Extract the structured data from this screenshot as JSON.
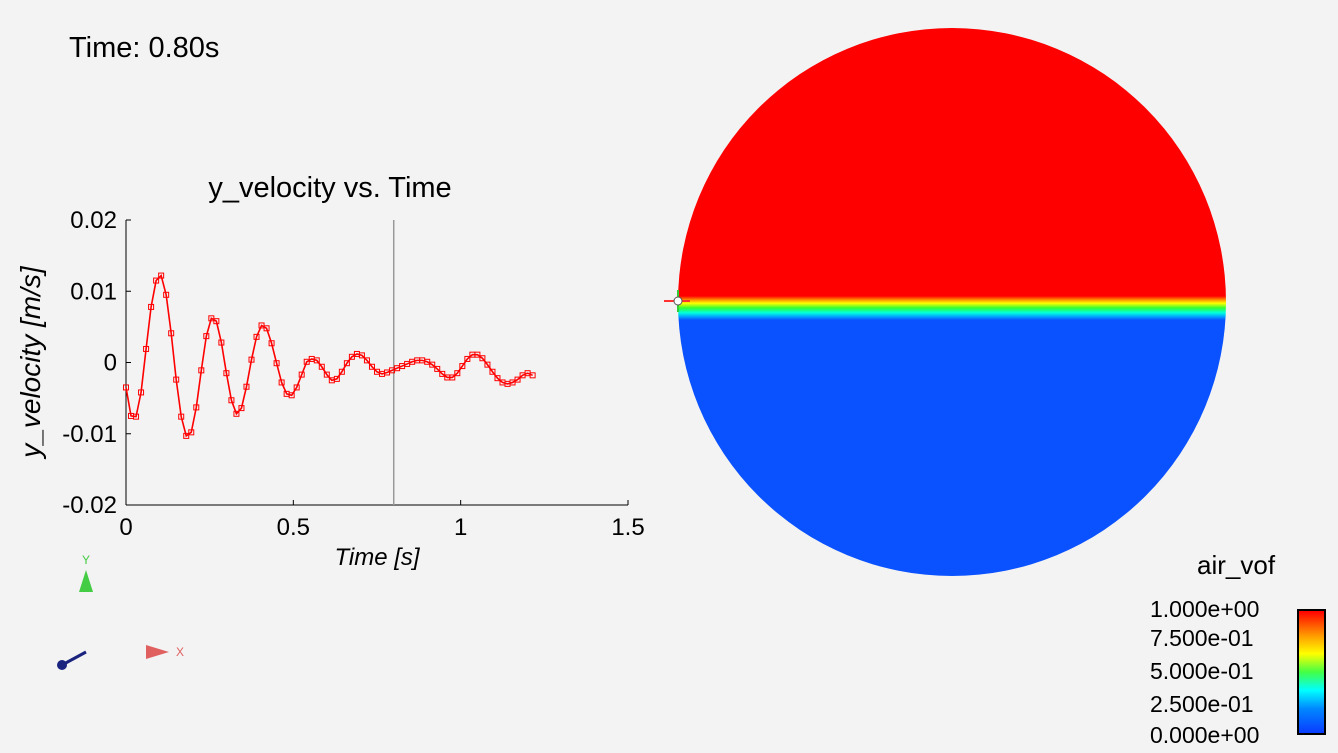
{
  "time_label": "Time: 0.80s",
  "chart_data": {
    "type": "line",
    "title": "y_velocity vs. Time",
    "xlabel": "Time [s]",
    "ylabel": "y_velocity [m/s]",
    "xlim": [
      0,
      1.5
    ],
    "ylim": [
      -0.02,
      0.02
    ],
    "xticks": [
      0,
      0.5,
      1,
      1.5
    ],
    "xtick_labels": [
      "0",
      "0.5",
      "1",
      "1.5"
    ],
    "yticks": [
      0.02,
      0.01,
      0,
      -0.01,
      -0.02
    ],
    "ytick_labels": [
      "0.02",
      "0.01",
      "0",
      "-0.01",
      "-0.02"
    ],
    "current_time_marker": 0.8,
    "grid": false,
    "series": [
      {
        "color": "#ff0000",
        "marker": "square",
        "x": [
          0.0,
          0.015,
          0.03,
          0.045,
          0.06,
          0.075,
          0.09,
          0.105,
          0.12,
          0.135,
          0.15,
          0.165,
          0.18,
          0.195,
          0.21,
          0.225,
          0.24,
          0.255,
          0.27,
          0.285,
          0.3,
          0.315,
          0.33,
          0.345,
          0.36,
          0.375,
          0.39,
          0.405,
          0.42,
          0.435,
          0.45,
          0.465,
          0.48,
          0.495,
          0.51,
          0.525,
          0.54,
          0.555,
          0.57,
          0.585,
          0.6,
          0.615,
          0.63,
          0.645,
          0.66,
          0.675,
          0.69,
          0.705,
          0.72,
          0.735,
          0.75,
          0.765,
          0.78,
          0.795,
          0.81,
          0.825,
          0.84,
          0.855,
          0.87,
          0.885,
          0.9,
          0.915,
          0.93,
          0.945,
          0.96,
          0.975,
          0.99,
          1.005,
          1.02,
          1.035,
          1.05,
          1.065,
          1.08,
          1.095,
          1.11,
          1.125,
          1.14,
          1.155,
          1.17,
          1.185,
          1.2,
          1.215
        ],
        "y": [
          -0.0035,
          -0.0075,
          -0.0076,
          -0.0042,
          0.0019,
          0.0078,
          0.0115,
          0.0122,
          0.0095,
          0.0041,
          -0.0024,
          -0.0076,
          -0.0103,
          -0.0098,
          -0.0063,
          -0.0011,
          0.0037,
          0.0062,
          0.0058,
          0.0028,
          -0.0015,
          -0.0053,
          -0.0072,
          -0.0064,
          -0.0034,
          0.0004,
          0.0036,
          0.0052,
          0.0048,
          0.0027,
          -0.0001,
          -0.0028,
          -0.0044,
          -0.0046,
          -0.0035,
          -0.0017,
          0.0001,
          0.0005,
          0.0003,
          -0.0006,
          -0.0017,
          -0.0025,
          -0.0023,
          -0.0013,
          -0.0001,
          0.0008,
          0.0012,
          0.001,
          0.0003,
          -0.0006,
          -0.0013,
          -0.0016,
          -0.0014,
          -0.0011,
          -0.0008,
          -0.0005,
          -0.0002,
          0.0001,
          0.0003,
          0.0003,
          0.0001,
          -0.0003,
          -0.0009,
          -0.0016,
          -0.0021,
          -0.0021,
          -0.0015,
          -0.0005,
          0.0005,
          0.0011,
          0.0011,
          0.0006,
          -0.0003,
          -0.0013,
          -0.0022,
          -0.0028,
          -0.003,
          -0.0028,
          -0.0024,
          -0.0018,
          -0.0015,
          -0.0018
        ]
      }
    ]
  },
  "legend": {
    "title": "air_vof",
    "ticks": [
      "1.000e+00",
      "7.500e-01",
      "5.000e-01",
      "2.500e-01",
      "0.000e+00"
    ]
  },
  "triad": {
    "x_label": "X",
    "y_label": "Y"
  },
  "colors": {
    "air": "#ff0000",
    "water": "#0a52ff",
    "background": "#f3f3f3",
    "curve": "#ff0000"
  }
}
